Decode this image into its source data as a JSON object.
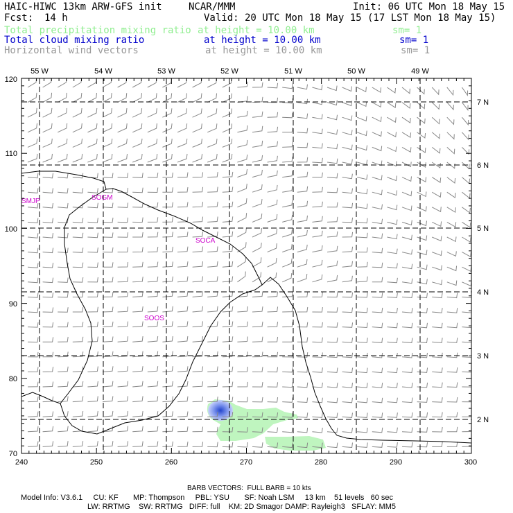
{
  "header": {
    "title": "HAIC-HIWC 13km ARW-GFS init",
    "org": "NCAR/MMM",
    "init": "Init: 06 UTC Mon 18 May 15",
    "fcst_label": "Fcst:",
    "fcst_value": "14 h",
    "valid": "Valid: 20 UTC Mon 18 May 15 (17 LST Mon 18 May 15)"
  },
  "fields": [
    {
      "name": "Total precipitation mixing ratio",
      "height": "at height = 10.00 km",
      "sm": "sm= 1",
      "color": "#90ee90"
    },
    {
      "name": "Total cloud mixing ratio",
      "height": "at height = 10.00 km",
      "sm": "sm= 1",
      "color": "#0000cc"
    },
    {
      "name": "Horizontal wind vectors",
      "height": "at height = 10.00 km",
      "sm": "sm= 1",
      "color": "#999999"
    }
  ],
  "map": {
    "x_ticks": [
      "240",
      "250",
      "260",
      "270",
      "280",
      "290",
      "300"
    ],
    "y_ticks": [
      "70",
      "80",
      "90",
      "100",
      "110",
      "120"
    ],
    "lon_labels": [
      "55 W",
      "54 W",
      "53 W",
      "52 W",
      "51 W",
      "50 W",
      "49 W"
    ],
    "lat_labels": [
      "2 N",
      "3 N",
      "4 N",
      "5 N",
      "6 N",
      "7 N"
    ],
    "site_labels": [
      "SMJP",
      "SOGM",
      "SOCA",
      "SOOS"
    ],
    "grid_color": "#000000",
    "coast_color": "#000000",
    "precip_color": "#bff5bf",
    "cloud_color": "#3355dd",
    "site_color": "#cc00cc"
  },
  "footer": {
    "barb": "BARB VECTORS:  FULL BARB = 10 kts",
    "model_line1": "Model Info: V3.6.1     CU: KF       MP: Thompson     PBL: YSU       SF: Noah LSM     13 km    51 levels   60 sec",
    "model_line2": "LW: RRTMG    SW: RRTMG   DIFF: full    KM: 2D Smagor DAMP: Rayleigh3   SFLAY: MM5"
  }
}
